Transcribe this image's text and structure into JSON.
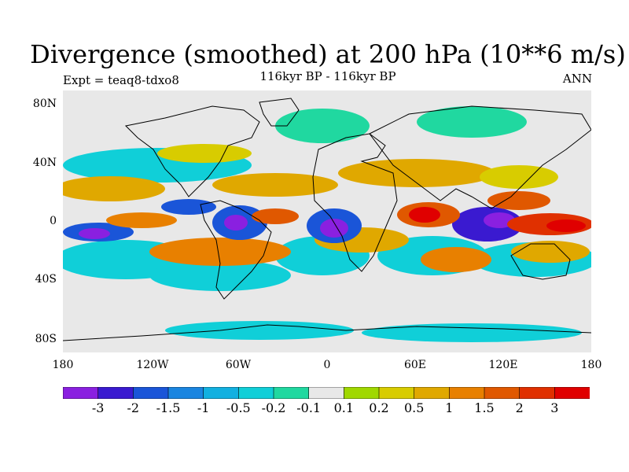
{
  "title": "Divergence (smoothed) at 200 hPa (10**6 m/s)",
  "subtitle": "116kyr BP - 116kyr BP",
  "left_label": "Expt = teaq8-tdxo8",
  "right_label": "ANN",
  "lat_ticks": [
    "80N",
    "40N",
    "0",
    "40S",
    "80S"
  ],
  "lon_ticks": [
    "180",
    "120W",
    "60W",
    "0",
    "60E",
    "120E",
    "180"
  ],
  "colorbar": {
    "labels": [
      "-3",
      "-2",
      "-1.5",
      "-1",
      "-0.5",
      "-0.2",
      "-0.1",
      "0.1",
      "0.2",
      "0.5",
      "1",
      "1.5",
      "2",
      "3"
    ],
    "colors": [
      "#8a20e0",
      "#3a1ad0",
      "#1a55d8",
      "#1a85e0",
      "#12b0e0",
      "#10cfd8",
      "#20d8a0",
      "#e8e8e8",
      "#a0d800",
      "#d8cc00",
      "#e0a800",
      "#e88000",
      "#e05800",
      "#e03000",
      "#e00000"
    ]
  },
  "colors": {
    "background_field": "#e8e8e8",
    "coastline": "#000000"
  }
}
